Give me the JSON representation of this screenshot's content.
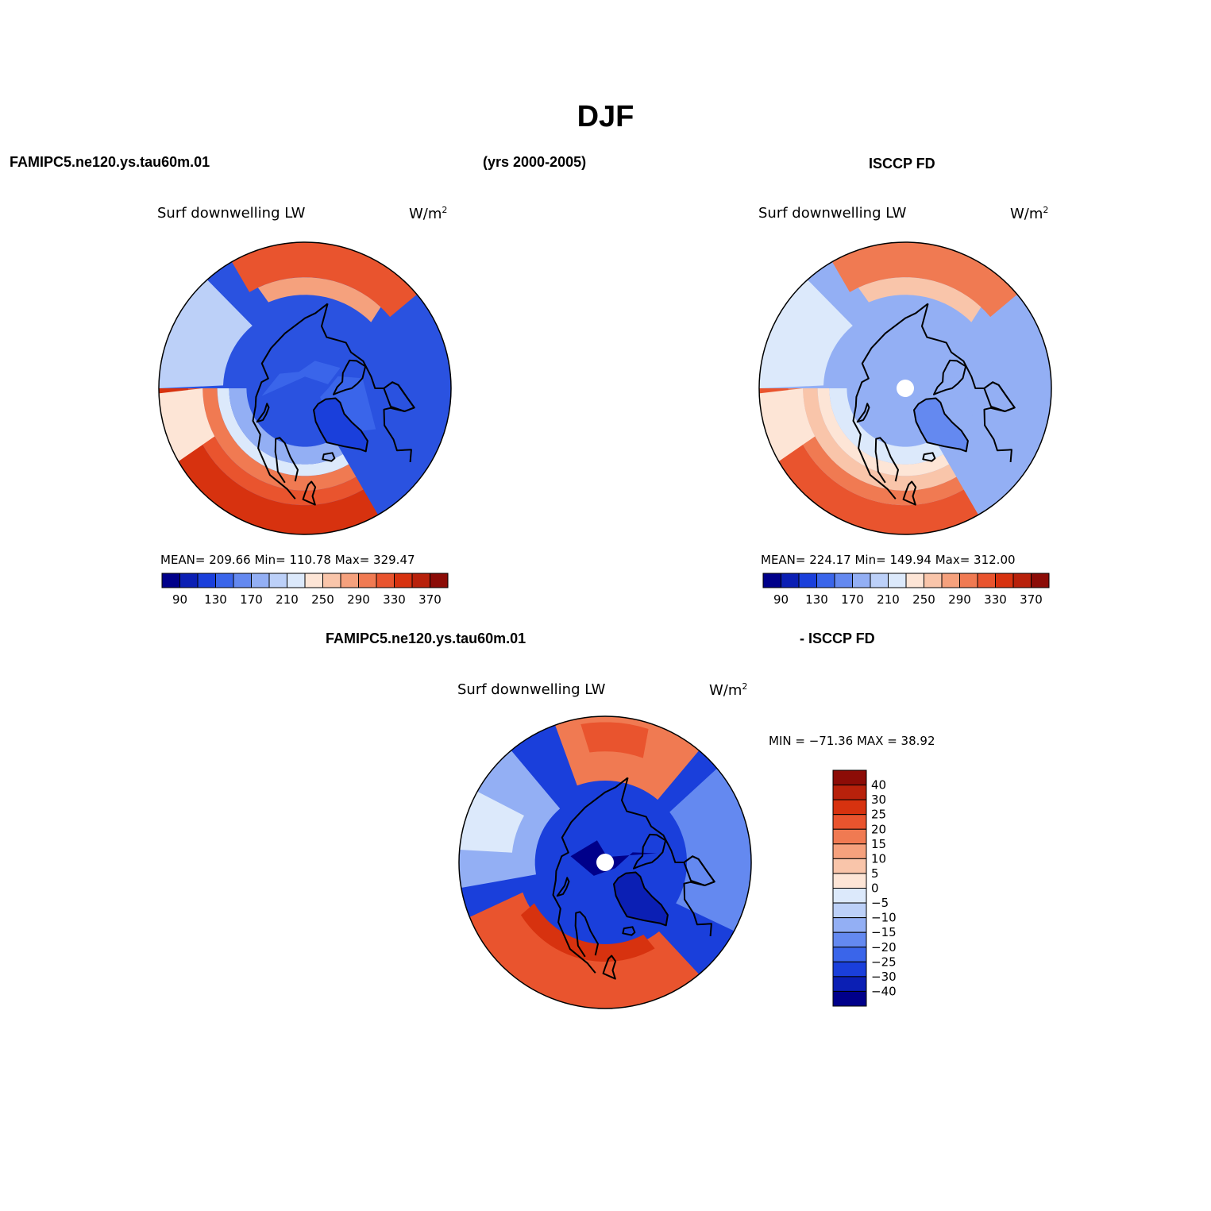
{
  "header": {
    "season": "DJF",
    "model_case": "FAMIPC5.ne120.ys.tau60m.01",
    "years": "(yrs 2000-2005)",
    "obs_case": "ISCCP FD"
  },
  "diff_header": {
    "model_case": "FAMIPC5.ne120.ys.tau60m.01",
    "obs_case": "- ISCCP FD"
  },
  "panels": [
    {
      "variable": "Surf downwelling LW",
      "units_base": "W/m",
      "units_exp": "2",
      "stats": "MEAN= 209.66   Min= 110.78   Max= 329.47"
    },
    {
      "variable": "Surf downwelling LW",
      "units_base": "W/m",
      "units_exp": "2",
      "stats": "MEAN= 224.17   Min= 149.94   Max= 312.00"
    },
    {
      "variable": "Surf downwelling LW",
      "units_base": "W/m",
      "units_exp": "2",
      "stats": "MIN = −71.36 MAX =  38.92"
    }
  ],
  "abs_colorbar": {
    "labels": [
      "90",
      "130",
      "170",
      "210",
      "250",
      "290",
      "330",
      "370"
    ],
    "colors": [
      "#00008a",
      "#0b1fb4",
      "#1a3fdb",
      "#3a65ea",
      "#6489f0",
      "#93aff4",
      "#bcd0f8",
      "#dce9fb",
      "#fde5d6",
      "#f9c5aa",
      "#f5a17d",
      "#f07a52",
      "#e9542e",
      "#d7320f",
      "#b8210b",
      "#8c0c07"
    ]
  },
  "diff_colorbar": {
    "labels": [
      "40",
      "30",
      "25",
      "20",
      "15",
      "10",
      "5",
      "0",
      "−5",
      "−10",
      "−15",
      "−20",
      "−25",
      "−30",
      "−40"
    ],
    "colors": [
      "#8c0c07",
      "#b8210b",
      "#d7320f",
      "#e9542e",
      "#f07a52",
      "#f5a17d",
      "#f9c5aa",
      "#fde5d6",
      "#dce9fb",
      "#bcd0f8",
      "#93aff4",
      "#6489f0",
      "#3a65ea",
      "#1a3fdb",
      "#0b1fb4",
      "#00008a"
    ]
  },
  "map_style": {
    "model_field": {
      "pole": "#2a52e0",
      "bands": [
        {
          "color": "#e9542e",
          "lat": 40,
          "lon0": 240,
          "lon1": 360,
          "lonb": 0,
          "lonc": 60
        },
        {
          "color": "#f07a52",
          "lat": 55,
          "lon0": 0,
          "lon1": 60
        },
        {
          "color": "#f07a52",
          "lat": 50,
          "lon0": 150,
          "lon1": 210
        },
        {
          "color": "#f9c5aa",
          "lat": 48,
          "lon0": 60,
          "lon1": 110
        },
        {
          "color": "#93aff4",
          "lat": 60,
          "lon0": 210,
          "lon1": 300
        },
        {
          "color": "#dce9fb",
          "lat": 50,
          "lon0": 80,
          "lon1": 140
        }
      ]
    },
    "obs_field": {
      "pole": "#93aff4",
      "blob": "#3a65ea"
    },
    "diff_field": {
      "pole": "#0b1fb4",
      "pos": "#e9542e",
      "light": "#f9c5aa",
      "neutral": "#dce9fb"
    }
  }
}
